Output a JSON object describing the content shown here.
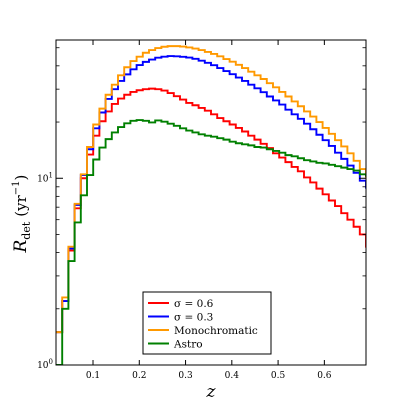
{
  "chart_data": {
    "type": "line",
    "step": true,
    "log_y": true,
    "xlabel": "z",
    "ylabel_main": "R",
    "ylabel_sub": "det",
    "ylabel_units": "(yr",
    "ylabel_units_exp": "−1",
    "ylabel_units_close": ")",
    "xlim": [
      0.02,
      0.69
    ],
    "ylim": [
      1,
      55
    ],
    "x_ticks": [
      {
        "value": 0.1,
        "label": "0.1"
      },
      {
        "value": 0.2,
        "label": "0.2"
      },
      {
        "value": 0.3,
        "label": "0.3"
      },
      {
        "value": 0.4,
        "label": "0.4"
      },
      {
        "value": 0.5,
        "label": "0.5"
      },
      {
        "value": 0.6,
        "label": "0.6"
      }
    ],
    "y_ticks": [
      {
        "value": 1,
        "base": "10",
        "exp": "0"
      },
      {
        "value": 10,
        "base": "10",
        "exp": "1"
      }
    ],
    "bin_start": 0.02,
    "bin_width": 0.0134,
    "legend_location": "lower center",
    "series": [
      {
        "name": "σ = 0.6",
        "color": "#ff0000",
        "values": [
          1.5,
          2.2,
          4.1,
          6.9,
          10.0,
          13.4,
          16.9,
          20.2,
          22.8,
          25.0,
          26.7,
          28.0,
          29.0,
          29.6,
          30.0,
          30.2,
          30.0,
          29.5,
          28.6,
          27.5,
          26.4,
          25.3,
          24.6,
          23.8,
          23.0,
          22.0,
          21.0,
          20.2,
          19.4,
          18.6,
          17.8,
          16.9,
          16.1,
          15.3,
          14.5,
          13.6,
          12.9,
          12.2,
          11.5,
          10.9,
          10.1,
          9.5,
          8.8,
          8.2,
          7.6,
          7.1,
          6.5,
          6.0,
          5.5,
          5.0,
          4.3
        ]
      },
      {
        "name": "σ = 0.3",
        "color": "#0000ff",
        "values": [
          1.5,
          2.2,
          4.2,
          7.2,
          10.4,
          14.3,
          18.5,
          22.5,
          26.6,
          30.0,
          33.2,
          36.0,
          38.3,
          40.4,
          42.0,
          43.2,
          44.2,
          44.8,
          45.1,
          45.0,
          44.7,
          44.3,
          43.6,
          42.6,
          41.5,
          40.3,
          38.9,
          37.5,
          36.1,
          34.6,
          33.2,
          31.7,
          30.3,
          28.9,
          27.4,
          26.1,
          24.8,
          23.3,
          22.0,
          20.8,
          19.6,
          18.3,
          17.1,
          16.0,
          14.9,
          13.7,
          12.7,
          11.7,
          10.7,
          9.7,
          8.9
        ]
      },
      {
        "name": "Monochromatic",
        "color": "#ff9900",
        "values": [
          1.5,
          2.3,
          4.3,
          7.3,
          10.5,
          14.7,
          19.4,
          23.6,
          28.0,
          31.7,
          35.6,
          39.3,
          42.4,
          44.8,
          47.0,
          48.6,
          49.8,
          50.6,
          51.0,
          51.0,
          50.7,
          50.2,
          49.5,
          48.6,
          47.5,
          46.3,
          45.0,
          43.5,
          42.1,
          40.5,
          38.9,
          37.2,
          35.6,
          34.0,
          32.3,
          30.7,
          29.0,
          27.4,
          25.8,
          24.3,
          22.8,
          21.4,
          20.0,
          18.6,
          17.3,
          16.0,
          14.8,
          13.6,
          12.4,
          11.2,
          10.2
        ]
      },
      {
        "name": "Astro",
        "color": "#008000",
        "values": [
          1.0,
          2.0,
          3.6,
          5.8,
          8.1,
          10.4,
          12.6,
          14.6,
          16.2,
          17.6,
          18.8,
          19.7,
          20.3,
          20.5,
          20.3,
          19.9,
          20.4,
          20.1,
          19.6,
          19.1,
          18.5,
          18.0,
          17.6,
          17.2,
          16.9,
          16.7,
          16.4,
          16.1,
          15.7,
          15.4,
          15.2,
          15.0,
          14.7,
          14.6,
          14.3,
          14.0,
          13.7,
          13.3,
          13.1,
          12.8,
          12.5,
          12.3,
          12.1,
          12.0,
          11.8,
          11.6,
          11.4,
          11.2,
          11.0,
          10.5,
          10.3
        ]
      }
    ]
  }
}
